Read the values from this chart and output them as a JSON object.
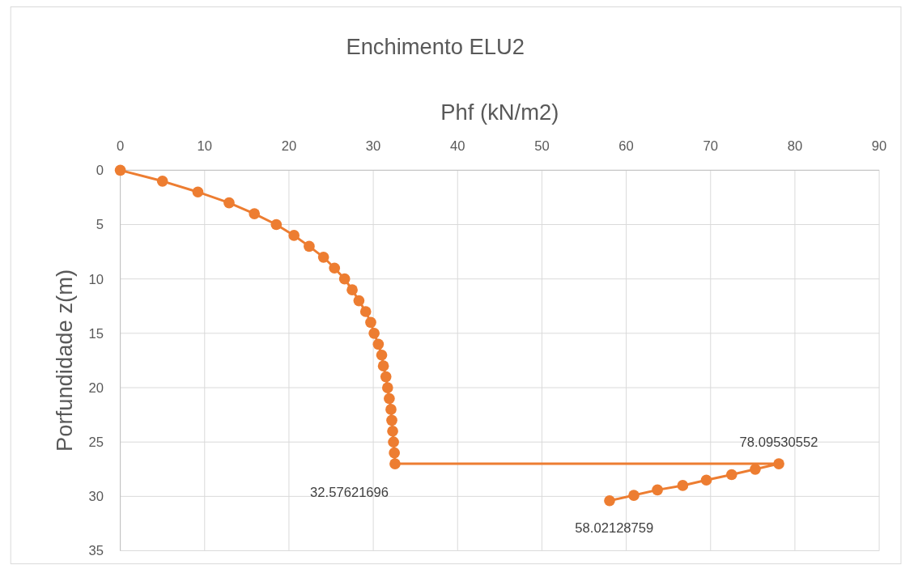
{
  "chart_data": {
    "type": "line",
    "title": "Enchimento ELU2",
    "xlabel": "Phf  (kN/m2)",
    "ylabel": "Porfundidade z(m)",
    "xlim": [
      0,
      90
    ],
    "xticks": [
      0,
      10,
      20,
      30,
      40,
      50,
      60,
      70,
      80,
      90
    ],
    "ylim": [
      35,
      0
    ],
    "yticks": [
      0,
      5,
      10,
      15,
      20,
      25,
      30,
      35
    ],
    "grid": true,
    "marker": "circle",
    "line_style": "solid",
    "annotations": [
      {
        "text": "32.57621696",
        "x": 32.57621696,
        "y": 27
      },
      {
        "text": "78.09530552",
        "x": 78.09530552,
        "y": 27
      },
      {
        "text": "58.02128759",
        "x": 58.02128759,
        "y": 30.4
      }
    ],
    "series": [
      {
        "color": "#ed7d31",
        "x": [
          0,
          5.0,
          9.2,
          12.9,
          15.9,
          18.5,
          20.6,
          22.4,
          24.1,
          25.4,
          26.6,
          27.5,
          28.3,
          29.1,
          29.7,
          30.1,
          30.6,
          31.0,
          31.2,
          31.5,
          31.7,
          31.9,
          32.1,
          32.2,
          32.3,
          32.4,
          32.5,
          32.57621696,
          78.09530552,
          75.3,
          72.5,
          69.5,
          66.7,
          63.7,
          60.9,
          58.02128759
        ],
        "values": [
          0,
          1,
          2,
          3,
          4,
          5,
          6,
          7,
          8,
          9,
          10,
          11,
          12,
          13,
          14,
          15,
          16,
          17,
          18,
          19,
          20,
          21,
          22,
          23,
          24,
          25,
          26,
          27,
          27,
          27.5,
          28.0,
          28.5,
          29.0,
          29.4,
          29.9,
          30.4
        ]
      }
    ]
  }
}
